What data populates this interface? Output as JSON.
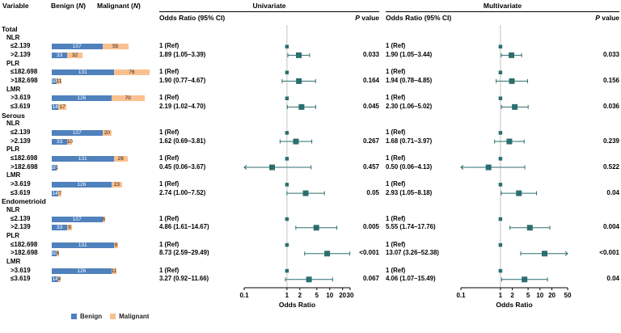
{
  "header": {
    "variable": "Variable",
    "benign_n": "Benign (N)",
    "malignant_n": "Malignant (N)",
    "univariate": "Univariate",
    "multivariate": "Multivariate",
    "or_ci": "Odds Ratio (95% CI)",
    "p_value": "P value"
  },
  "legend": {
    "benign": "Benign",
    "malignant": "Malignant"
  },
  "colors": {
    "benign": "#4f81bd",
    "malignant": "#fac08f",
    "marker": "#2c6e6e",
    "refline": "#c2c2c2",
    "axis": "#000000"
  },
  "chart_data": {
    "type": "forest",
    "x_scale": "log",
    "axis_title": "Odds Ratio",
    "univariate_axis": {
      "min": 0.1,
      "max": 30,
      "ticks": [
        0.1,
        1,
        2,
        5,
        10,
        20,
        30
      ]
    },
    "multivariate_axis": {
      "min": 0.1,
      "max": 50,
      "ticks": [
        0.1,
        1,
        2,
        5,
        10,
        20,
        50
      ]
    },
    "rows": [
      {
        "type": "group",
        "label": "Total"
      },
      {
        "type": "sub",
        "label": "NLR"
      },
      {
        "type": "item",
        "label": "≤2.139",
        "benign": 107,
        "malignant": 55,
        "uni": {
          "or": "1 (Ref)",
          "est": 1,
          "lo": null,
          "hi": null,
          "p": ""
        },
        "multi": {
          "or": "1 (Ref)",
          "est": 1,
          "lo": null,
          "hi": null,
          "p": ""
        }
      },
      {
        "type": "item",
        "label": ">2.139",
        "benign": 33,
        "malignant": 32,
        "uni": {
          "or": "1.89 (1.05–3.39)",
          "est": 1.89,
          "lo": 1.05,
          "hi": 3.39,
          "p": "0.033"
        },
        "multi": {
          "or": "1.90 (1.05–3.44)",
          "est": 1.9,
          "lo": 1.05,
          "hi": 3.44,
          "p": "0.033"
        }
      },
      {
        "type": "sub",
        "label": "PLR"
      },
      {
        "type": "item",
        "label": "≤182.698",
        "benign": 131,
        "malignant": 76,
        "uni": {
          "or": "1 (Ref)",
          "est": 1,
          "lo": null,
          "hi": null,
          "p": ""
        },
        "multi": {
          "or": "1 (Ref)",
          "est": 1,
          "lo": null,
          "hi": null,
          "p": ""
        }
      },
      {
        "type": "item",
        "label": ">182.698",
        "benign": 10,
        "malignant": 11,
        "uni": {
          "or": "1.90 (0.77–4.67)",
          "est": 1.9,
          "lo": 0.77,
          "hi": 4.67,
          "p": "0.164"
        },
        "multi": {
          "or": "1.94 (0.78–4.85)",
          "est": 1.94,
          "lo": 0.78,
          "hi": 4.85,
          "p": "0.156"
        }
      },
      {
        "type": "sub",
        "label": "LMR"
      },
      {
        "type": "item",
        "label": ">3.619",
        "benign": 126,
        "malignant": 70,
        "uni": {
          "or": "1 (Ref)",
          "est": 1,
          "lo": null,
          "hi": null,
          "p": ""
        },
        "multi": {
          "or": "1 (Ref)",
          "est": 1,
          "lo": null,
          "hi": null,
          "p": ""
        }
      },
      {
        "type": "item",
        "label": "≤3.619",
        "benign": 14,
        "malignant": 17,
        "uni": {
          "or": "2.19 (1.02–4.70)",
          "est": 2.19,
          "lo": 1.02,
          "hi": 4.7,
          "p": "0.045"
        },
        "multi": {
          "or": "2.30 (1.06–5.02)",
          "est": 2.3,
          "lo": 1.06,
          "hi": 5.02,
          "p": "0.036"
        }
      },
      {
        "type": "group",
        "label": "Serous"
      },
      {
        "type": "sub",
        "label": "NLR"
      },
      {
        "type": "item",
        "label": "≤2.139",
        "benign": 107,
        "malignant": 20,
        "uni": {
          "or": "1 (Ref)",
          "est": 1,
          "lo": null,
          "hi": null,
          "p": ""
        },
        "multi": {
          "or": "1 (Ref)",
          "est": 1,
          "lo": null,
          "hi": null,
          "p": ""
        }
      },
      {
        "type": "item",
        "label": ">2.139",
        "benign": 33,
        "malignant": 10,
        "uni": {
          "or": "1.62 (0.69–3.81)",
          "est": 1.62,
          "lo": 0.69,
          "hi": 3.81,
          "p": "0.267"
        },
        "multi": {
          "or": "1.68 (0.71–3.97)",
          "est": 1.68,
          "lo": 0.71,
          "hi": 3.97,
          "p": "0.239"
        }
      },
      {
        "type": "sub",
        "label": "PLR"
      },
      {
        "type": "item",
        "label": "≤182.698",
        "benign": 131,
        "malignant": 29,
        "uni": {
          "or": "1 (Ref)",
          "est": 1,
          "lo": null,
          "hi": null,
          "p": ""
        },
        "multi": {
          "or": "1 (Ref)",
          "est": 1,
          "lo": null,
          "hi": null,
          "p": ""
        }
      },
      {
        "type": "item",
        "label": ">182.698",
        "benign": 10,
        "malignant": 1,
        "uni": {
          "or": "0.45 (0.06–3.67)",
          "est": 0.45,
          "lo": 0.06,
          "hi": 3.67,
          "p": "0.457"
        },
        "multi": {
          "or": "0.50 (0.06–4.13)",
          "est": 0.5,
          "lo": 0.06,
          "hi": 4.13,
          "p": "0.522"
        }
      },
      {
        "type": "sub",
        "label": "LMR"
      },
      {
        "type": "item",
        "label": ">3.619",
        "benign": 126,
        "malignant": 23,
        "uni": {
          "or": "1 (Ref)",
          "est": 1,
          "lo": null,
          "hi": null,
          "p": ""
        },
        "multi": {
          "or": "1 (Ref)",
          "est": 1,
          "lo": null,
          "hi": null,
          "p": ""
        }
      },
      {
        "type": "item",
        "label": "≤3.619",
        "benign": 14,
        "malignant": 7,
        "uni": {
          "or": "2.74 (1.00–7.52)",
          "est": 2.74,
          "lo": 1.0,
          "hi": 7.52,
          "p": "0.05"
        },
        "multi": {
          "or": "2.93 (1.05–8.18)",
          "est": 2.93,
          "lo": 1.05,
          "hi": 8.18,
          "p": "0.04"
        }
      },
      {
        "type": "group",
        "label": "Endometrioid"
      },
      {
        "type": "sub",
        "label": "NLR"
      },
      {
        "type": "item",
        "label": "≤2.139",
        "benign": 107,
        "malignant": 6,
        "uni": {
          "or": "1 (Ref)",
          "est": 1,
          "lo": null,
          "hi": null,
          "p": ""
        },
        "multi": {
          "or": "1 (Ref)",
          "est": 1,
          "lo": null,
          "hi": null,
          "p": ""
        }
      },
      {
        "type": "item",
        "label": ">2.139",
        "benign": 33,
        "malignant": 9,
        "uni": {
          "or": "4.86 (1.61–14.67)",
          "est": 4.86,
          "lo": 1.61,
          "hi": 14.67,
          "p": "0.005"
        },
        "multi": {
          "or": "5.55 (1.74–17.76)",
          "est": 5.55,
          "lo": 1.74,
          "hi": 17.76,
          "p": "0.004"
        }
      },
      {
        "type": "sub",
        "label": "PLR"
      },
      {
        "type": "item",
        "label": "≤182.698",
        "benign": 131,
        "malignant": 9,
        "uni": {
          "or": "1 (Ref)",
          "est": 1,
          "lo": null,
          "hi": null,
          "p": ""
        },
        "multi": {
          "or": "1 (Ref)",
          "est": 1,
          "lo": null,
          "hi": null,
          "p": ""
        }
      },
      {
        "type": "item",
        "label": ">182.698",
        "benign": 10,
        "malignant": 6,
        "uni": {
          "or": "8.73 (2.59–29.49)",
          "est": 8.73,
          "lo": 2.59,
          "hi": 29.49,
          "p": "<0.001"
        },
        "multi": {
          "or": "13.07 (3.26–52.38)",
          "est": 13.07,
          "lo": 3.26,
          "hi": 52.38,
          "p": "<0.001"
        }
      },
      {
        "type": "sub",
        "label": "LMR"
      },
      {
        "type": "item",
        "label": ">3.619",
        "benign": 126,
        "malignant": 11,
        "uni": {
          "or": "1 (Ref)",
          "est": 1,
          "lo": null,
          "hi": null,
          "p": ""
        },
        "multi": {
          "or": "1 (Ref)",
          "est": 1,
          "lo": null,
          "hi": null,
          "p": ""
        }
      },
      {
        "type": "item",
        "label": "≤3.619",
        "benign": 14,
        "malignant": 4,
        "uni": {
          "or": "3.27 (0.92–11.66)",
          "est": 3.27,
          "lo": 0.92,
          "hi": 11.66,
          "p": "0.067"
        },
        "multi": {
          "or": "4.06 (1.07–15.49)",
          "est": 4.06,
          "lo": 1.07,
          "hi": 15.49,
          "p": "0.04"
        }
      }
    ]
  }
}
